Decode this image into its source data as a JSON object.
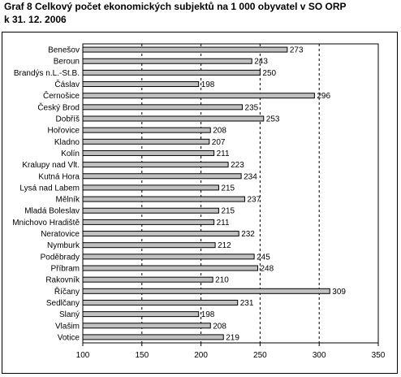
{
  "chart_data": {
    "type": "bar",
    "orientation": "horizontal",
    "title": "Graf 8 Celkový počet ekonomických subjektů na 1 000 obyvatel v SO ORP",
    "subtitle": "k 31. 12. 2006",
    "xlabel": "",
    "ylabel": "",
    "xlim": [
      100,
      350
    ],
    "x_ticks": [
      "100",
      "150",
      "200",
      "250",
      "300",
      "350"
    ],
    "grid": "dashed vertical gridlines",
    "legend": "none",
    "bar_color": "#c0c0c0",
    "categories": [
      "Benešov",
      "Beroun",
      "Brandýs n.L.-St.B.",
      "Čáslav",
      "Černošice",
      "Český Brod",
      "Dobříš",
      "Hořovice",
      "Kladno",
      "Kolín",
      "Kralupy nad Vlt.",
      "Kutná Hora",
      "Lysá nad Labem",
      "Mělník",
      "Mladá Boleslav",
      "Mnichovo Hradiště",
      "Neratovice",
      "Nymburk",
      "Poděbrady",
      "Příbram",
      "Rakovník",
      "Říčany",
      "Sedlčany",
      "Slaný",
      "Vlašim",
      "Votice"
    ],
    "values": [
      273,
      243,
      250,
      198,
      296,
      235,
      253,
      208,
      207,
      211,
      223,
      234,
      215,
      237,
      215,
      211,
      232,
      212,
      245,
      248,
      210,
      309,
      231,
      198,
      208,
      219
    ],
    "data_labels": [
      "273",
      "243",
      "250",
      "198",
      "296",
      "235",
      "253",
      "208",
      "207",
      "211",
      "223",
      "234",
      "215",
      "237",
      "215",
      "211",
      "232",
      "212",
      "245",
      "248",
      "210",
      "309",
      "231",
      "198",
      "208",
      "219"
    ]
  }
}
